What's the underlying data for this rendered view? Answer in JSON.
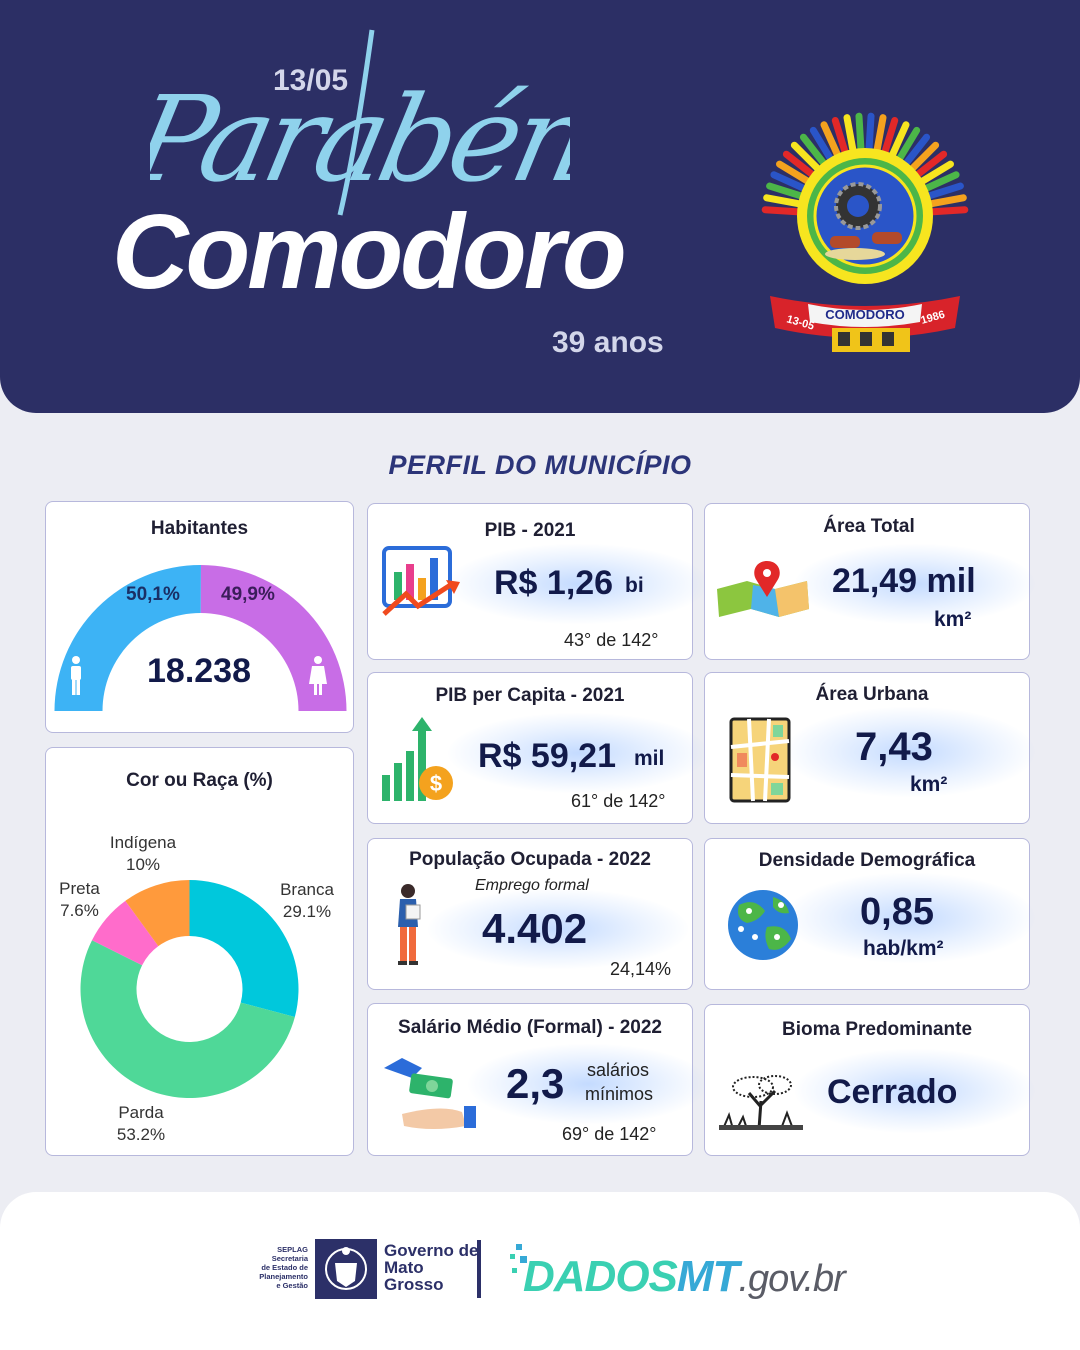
{
  "header": {
    "script_word": "Parabéns",
    "date": "13/05",
    "city": "Comodoro",
    "age": "39 anos",
    "emblem_name": "COMODORO",
    "emblem_left": "13-05",
    "emblem_right": "1986",
    "emblem_icon": "municipal-coat-of-arms"
  },
  "section_title": "PERFIL DO MUNICÍPIO",
  "habitantes": {
    "title": "Habitantes",
    "total": "18.238",
    "male_pct_label": "50,1%",
    "female_pct_label": "49,9%",
    "male_fraction": 0.501,
    "female_fraction": 0.499,
    "male_color": "#3db3f5",
    "female_color": "#c86de6",
    "male_icon": "male-person-icon",
    "female_icon": "female-person-icon"
  },
  "cor_raca": {
    "title": "Cor ou Raça (%)",
    "chart_data": {
      "type": "pie",
      "title": "Cor ou Raça (%)",
      "categories": [
        "Branca",
        "Parda",
        "Preta",
        "Indígena"
      ],
      "values": [
        29.1,
        53.2,
        7.6,
        10
      ],
      "value_labels": [
        "29.1%",
        "53.2%",
        "7.6%",
        "10%"
      ],
      "colors": [
        "#00c8dc",
        "#4fd898",
        "#ff6ccb",
        "#ff9a3c"
      ],
      "donut": true
    }
  },
  "pib": {
    "title": "PIB - 2021",
    "value": "R$ 1,26",
    "unit": "bi",
    "rank": "43° de 142°",
    "icon": "bar-chart-growth-icon"
  },
  "pib_capita": {
    "title": "PIB per Capita - 2021",
    "value": "R$ 59,21",
    "unit": "mil",
    "rank": "61° de 142°",
    "icon": "money-growth-icon"
  },
  "populacao": {
    "title": "População  Ocupada - 2022",
    "subtitle": "Emprego formal",
    "value": "4.402",
    "rate": "24,14%",
    "icon": "worker-woman-icon"
  },
  "salario": {
    "title": "Salário Médio (Formal) - 2022",
    "value": "2,3",
    "unit_line1": "salários",
    "unit_line2": "mínimos",
    "rank": "69° de 142°",
    "icon": "cash-hands-icon"
  },
  "area_total": {
    "title": "Área Total",
    "value": "21,49 mil",
    "unit": "km²",
    "icon": "map-pin-icon"
  },
  "area_urbana": {
    "title": "Área Urbana",
    "value": "7,43",
    "unit": "km²",
    "icon": "city-map-icon"
  },
  "densidade": {
    "title": "Densidade Demográfica",
    "value": "0,85",
    "unit": "hab/km²",
    "icon": "globe-people-icon"
  },
  "bioma": {
    "title": "Bioma Predominante",
    "value": "Cerrado",
    "icon": "cerrado-tree-icon"
  },
  "footer": {
    "seplag": [
      "SEPLAG",
      "Secretaria",
      "de Estado de",
      "Planejamento",
      "e Gestão"
    ],
    "gov": [
      "Governo de",
      "Mato",
      "Grosso"
    ],
    "dados_a": "DADOS",
    "dados_b": "MT",
    "dados_c": ".gov.br"
  }
}
